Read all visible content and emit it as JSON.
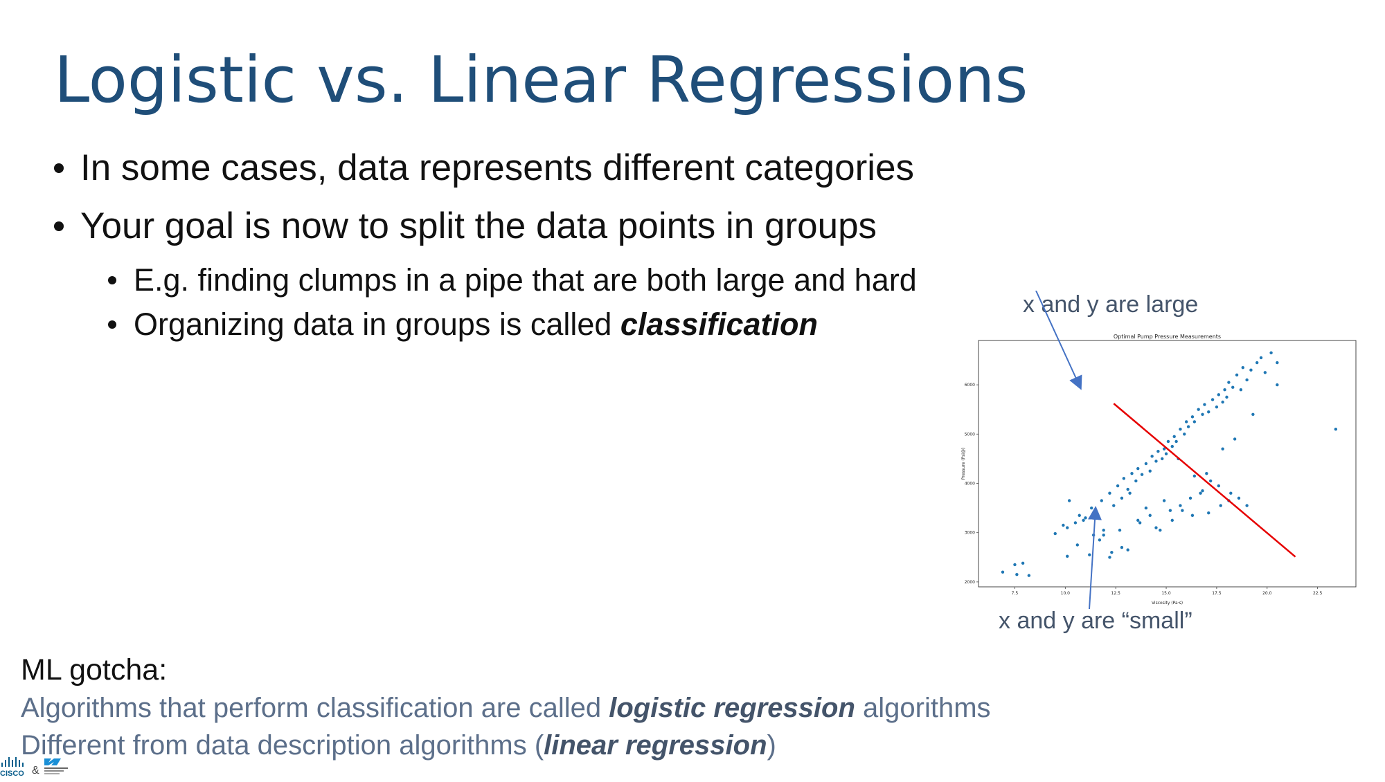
{
  "slide": {
    "title": "Logistic vs. Linear Regressions",
    "bullets": [
      "In some cases, data represents different categories",
      "Your goal is now to split the data points in groups"
    ],
    "subbullets": [
      {
        "text": "E.g. finding clumps in a pipe that are both large and hard"
      },
      {
        "pre": "Organizing data in groups is called ",
        "em": "classification"
      }
    ]
  },
  "annotations": {
    "top": "x and y are large",
    "bottom": "x and y are “small”"
  },
  "gotcha": {
    "heading": "ML gotcha:",
    "line1_pre": "Algorithms that perform classification are called ",
    "line1_em": "logistic regression",
    "line1_post": " algorithms",
    "line2_pre": "Different from data description algorithms (",
    "line2_em": "linear regression",
    "line2_post": ")"
  },
  "logos": {
    "left": "CISCO",
    "amp": "&"
  },
  "colors": {
    "title": "#1f4e79",
    "points": "#1f77b4",
    "split_line": "#e60000",
    "arrows": "#4472c4"
  },
  "chart_data": {
    "type": "scatter",
    "title": "Optimal Pump Pressure Measurements",
    "xlabel": "Viscosity (Pa·s)",
    "ylabel": "Pressure (Psi@)",
    "xlim": [
      5.7,
      24.4
    ],
    "ylim": [
      1900,
      6900
    ],
    "xticks": [
      "7.5",
      "10.0",
      "12.5",
      "15.0",
      "17.5",
      "20.0",
      "22.5"
    ],
    "yticks": [
      "2000",
      "3000",
      "4000",
      "5000",
      "6000"
    ],
    "x": [
      6.9,
      7.5,
      7.6,
      7.9,
      8.2,
      9.5,
      9.9,
      10.1,
      10.1,
      10.5,
      10.7,
      10.9,
      11.3,
      11.5,
      11.8,
      11.9,
      12.2,
      12.4,
      12.6,
      12.8,
      12.9,
      13.1,
      13.3,
      13.5,
      13.6,
      13.8,
      14.0,
      14.2,
      14.3,
      14.5,
      14.6,
      14.8,
      14.9,
      15.0,
      15.1,
      15.3,
      15.4,
      15.5,
      15.7,
      15.9,
      16.0,
      16.1,
      16.3,
      16.4,
      16.6,
      16.8,
      16.9,
      17.1,
      17.3,
      17.5,
      17.6,
      17.8,
      17.9,
      18.0,
      18.1,
      18.3,
      18.5,
      18.7,
      18.8,
      19.0,
      19.2,
      19.5,
      19.7,
      19.9,
      20.2,
      20.5,
      20.5,
      23.4,
      10.2,
      10.6,
      11.0,
      11.4,
      11.9,
      12.3,
      12.8,
      13.2,
      13.6,
      14.0,
      14.5,
      14.9,
      15.3,
      15.8,
      16.3,
      16.8,
      17.2,
      17.7,
      18.2,
      18.6,
      19.0,
      11.2,
      11.7,
      12.2,
      12.7,
      13.1,
      13.7,
      14.2,
      14.7,
      15.2,
      15.7,
      16.2,
      16.7,
      17.1,
      17.6,
      18.1,
      15.6,
      16.4,
      17.0,
      17.8,
      18.4,
      19.3
    ],
    "y": [
      2200,
      2350,
      2150,
      2380,
      2130,
      2980,
      3150,
      2520,
      3100,
      3200,
      3350,
      3250,
      3500,
      3380,
      3650,
      2950,
      3800,
      3550,
      3950,
      3700,
      4100,
      3880,
      4200,
      4050,
      4300,
      4180,
      4400,
      4250,
      4550,
      4450,
      4650,
      4500,
      4700,
      4600,
      4850,
      4750,
      4950,
      4850,
      5100,
      5000,
      5250,
      5150,
      5350,
      5250,
      5500,
      5400,
      5600,
      5450,
      5700,
      5550,
      5800,
      5650,
      5900,
      5750,
      6050,
      5950,
      6200,
      5900,
      6350,
      6100,
      6300,
      6450,
      6550,
      6250,
      6650,
      6450,
      6000,
      5100,
      3650,
      2750,
      3300,
      2950,
      3050,
      2600,
      2700,
      3800,
      3250,
      3500,
      3100,
      3650,
      3250,
      3450,
      3350,
      3850,
      4050,
      3550,
      3800,
      3700,
      3550,
      2550,
      2850,
      2500,
      3050,
      2650,
      3200,
      3350,
      3050,
      3450,
      3550,
      3700,
      3800,
      3400,
      3950,
      3650,
      4500,
      4150,
      4200,
      4700,
      4900,
      5400
    ]
  }
}
